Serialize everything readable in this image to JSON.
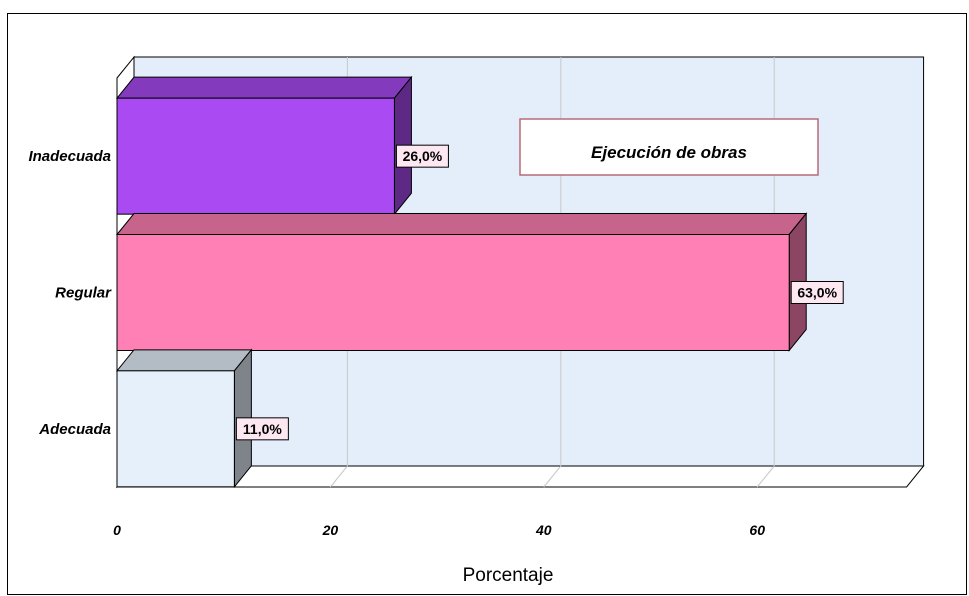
{
  "chart_data": {
    "type": "bar",
    "orientation": "horizontal",
    "categories": [
      "Inadecuada",
      "Regular",
      "Adecuada"
    ],
    "values": [
      26.0,
      63.0,
      11.0
    ],
    "value_labels": [
      "26,0%",
      "63,0%",
      "11,0%"
    ],
    "colors": [
      "#a94af2",
      "#ff80b4",
      "#e6f0fb"
    ],
    "xlabel": "Porcentaje",
    "ylabel": "",
    "xlim": [
      0,
      74
    ],
    "xticks": [
      0,
      20,
      40,
      60
    ],
    "xtick_labels": [
      "0",
      "20",
      "40",
      "60"
    ],
    "grid": true,
    "legend_text": "Ejecución de obras",
    "legend_placement": "top-right",
    "plot_background": "#e3eefa"
  }
}
